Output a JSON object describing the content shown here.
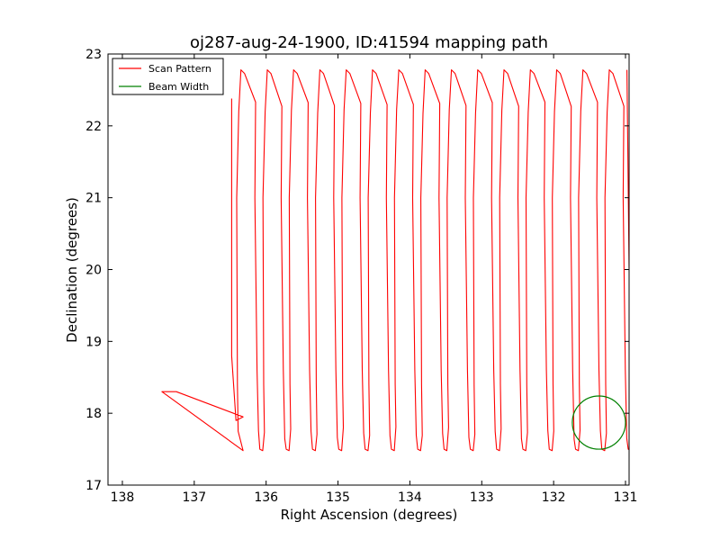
{
  "chart_data": {
    "type": "line",
    "title": "oj287-aug-24-1900, ID:41594 mapping path",
    "xlabel": "Right Ascension (degrees)",
    "ylabel": "Declination (degrees)",
    "xlim": [
      138.2,
      130.95
    ],
    "ylim": [
      17,
      23
    ],
    "x_inverted": true,
    "xticks": [
      138,
      137,
      136,
      135,
      134,
      133,
      132,
      131
    ],
    "yticks": [
      17,
      18,
      19,
      20,
      21,
      22,
      23
    ],
    "grid": false,
    "legend_position": "top-left",
    "series": [
      {
        "name": "Scan Pattern",
        "color": "#ff0000",
        "kind": "raster-scan",
        "lead_in": [
          [
            136.48,
            22.38
          ],
          [
            136.48,
            18.8
          ],
          [
            136.42,
            17.9
          ],
          [
            136.32,
            17.95
          ],
          [
            137.25,
            18.3
          ],
          [
            137.45,
            18.3
          ],
          [
            136.32,
            17.48
          ]
        ],
        "raster": {
          "x_start": 136.32,
          "x_end": 130.98,
          "leg_spacing": 0.183,
          "dec_low": 17.48,
          "dec_high": 22.78
        }
      },
      {
        "name": "Beam Width",
        "color": "#008000",
        "kind": "circle",
        "center": [
          131.37,
          17.87
        ],
        "radius_deg": 0.37
      }
    ]
  }
}
